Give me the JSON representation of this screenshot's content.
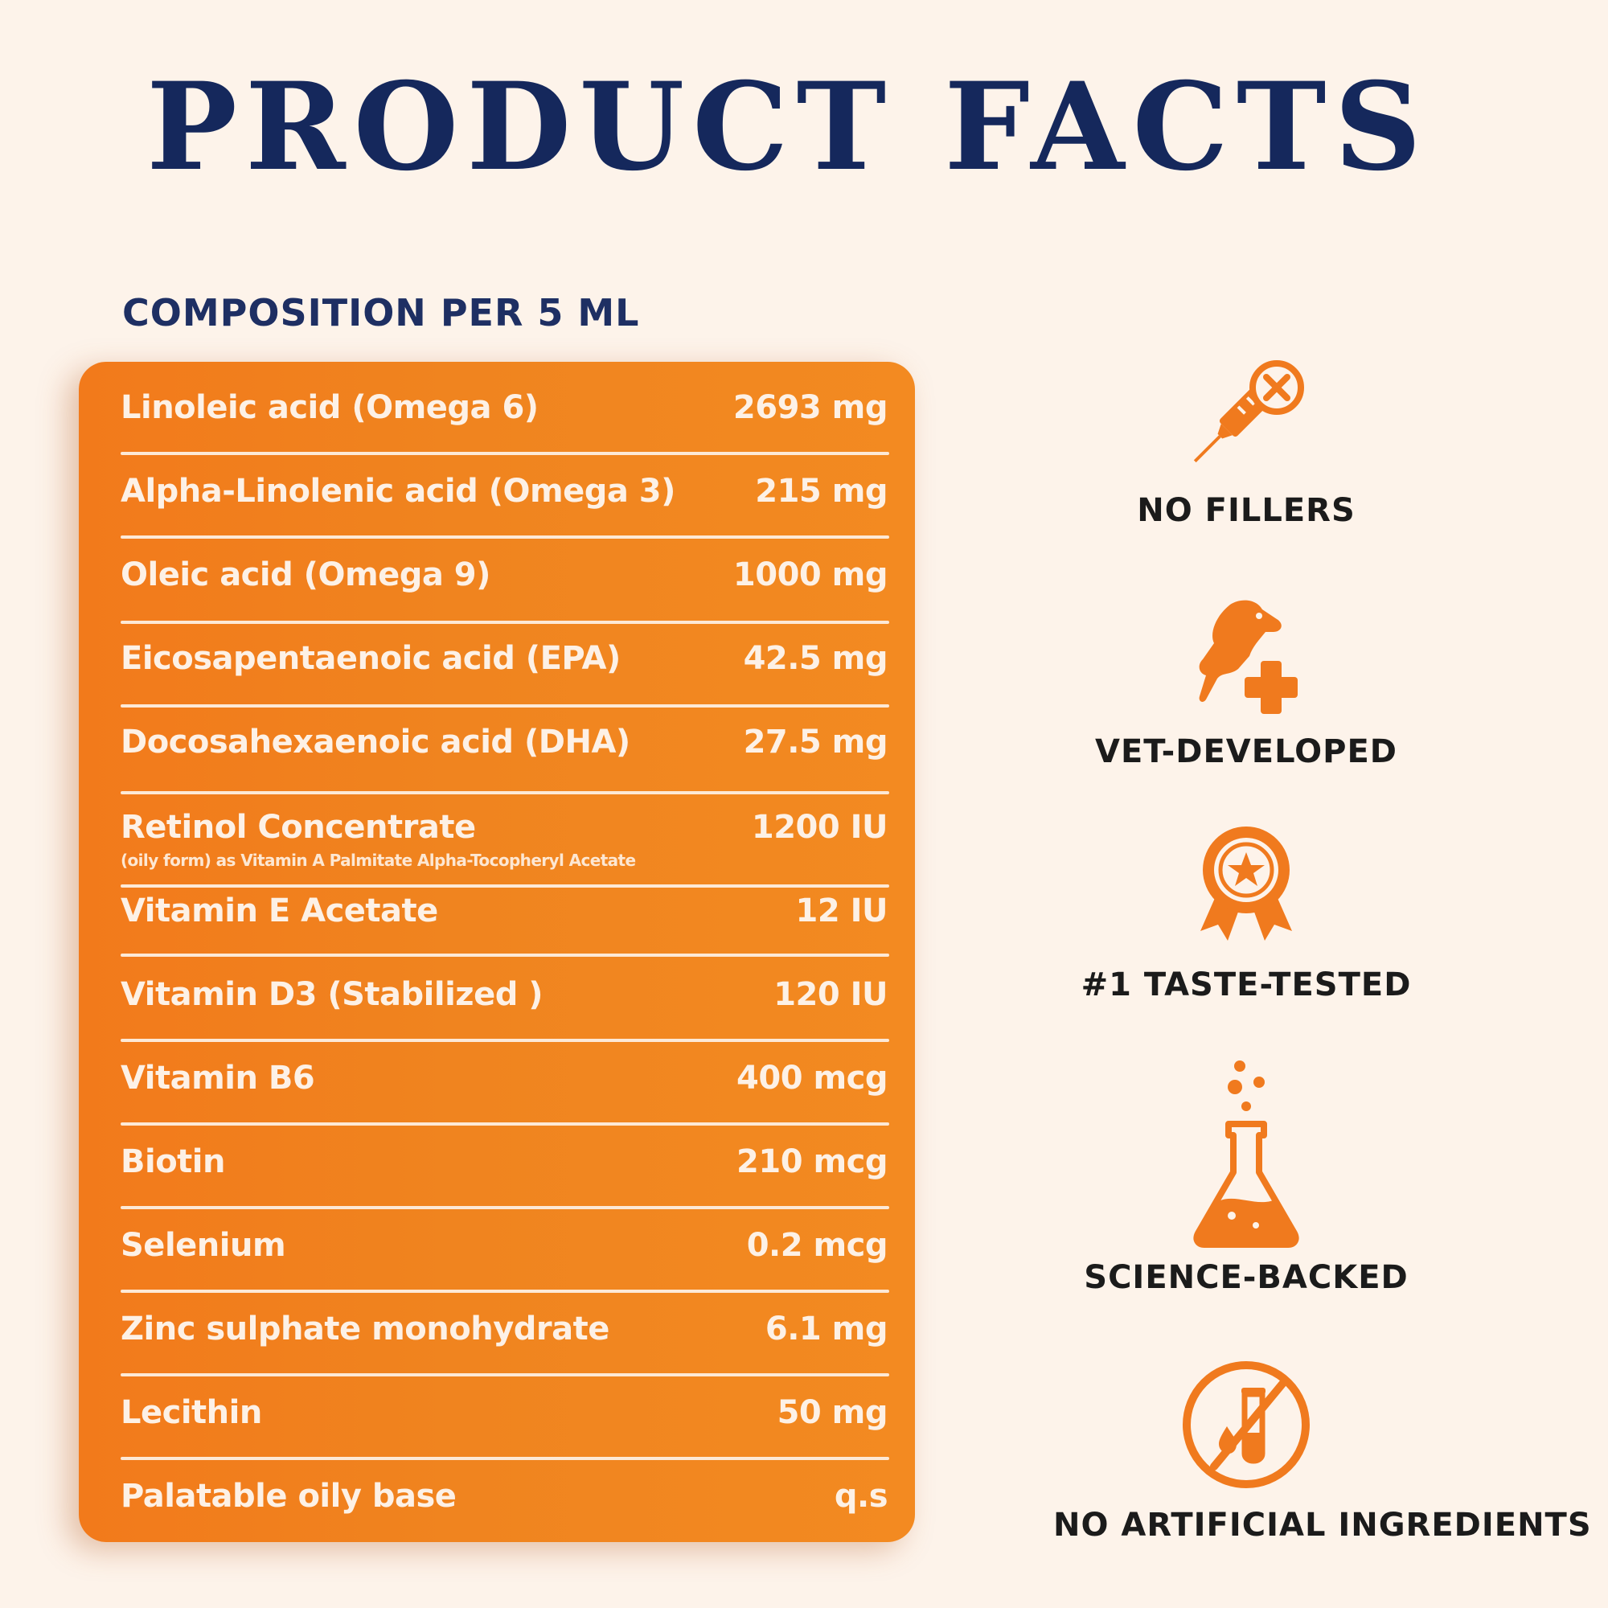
{
  "header": {
    "title": "PRODUCT FACTS"
  },
  "composition": {
    "heading": "COMPOSITION PER 5 ML",
    "rows": [
      {
        "label": "Linoleic acid (Omega 6)",
        "value": "2693 mg"
      },
      {
        "label": "Alpha-Linolenic acid (Omega 3)",
        "value": "215 mg"
      },
      {
        "label": "Oleic acid (Omega 9)",
        "value": "1000 mg"
      },
      {
        "label": "Eicosapentaenoic acid (EPA)",
        "value": "42.5 mg"
      },
      {
        "label": "Docosahexaenoic acid (DHA)",
        "value": "27.5 mg"
      },
      {
        "label": "Retinol Concentrate",
        "sub": "(oily form) as Vitamin A Palmitate Alpha-Tocopheryl Acetate",
        "value": "1200 IU"
      },
      {
        "label": "Vitamin E Acetate",
        "value": "12 IU"
      },
      {
        "label": "Vitamin D3 (Stabilized )",
        "value": "120 IU"
      },
      {
        "label": "Vitamin B6",
        "value": "400 mcg"
      },
      {
        "label": "Biotin",
        "value": "210 mcg"
      },
      {
        "label": "Selenium",
        "value": "0.2 mcg"
      },
      {
        "label": "Zinc sulphate monohydrate",
        "value": "6.1 mg"
      },
      {
        "label": "Lecithin",
        "value": "50 mg"
      },
      {
        "label": "Palatable oily base",
        "value": "q.s"
      }
    ]
  },
  "features": [
    {
      "label": "NO FILLERS",
      "icon": "no-syringe-icon"
    },
    {
      "label": "VET-DEVELOPED",
      "icon": "dog-medical-cross-icon"
    },
    {
      "label": "#1 TASTE-TESTED",
      "icon": "award-ribbon-icon"
    },
    {
      "label": "SCIENCE-BACKED",
      "icon": "lab-flask-icon"
    },
    {
      "label": "NO ARTIFICIAL INGREDIENTS",
      "icon": "no-test-tube-icon"
    }
  ],
  "colors": {
    "background": "#fdf3ea",
    "title": "#15285c",
    "panel": "#f27a1b",
    "icon": "#f07a1e",
    "panel_text": "#fdf1e6"
  }
}
